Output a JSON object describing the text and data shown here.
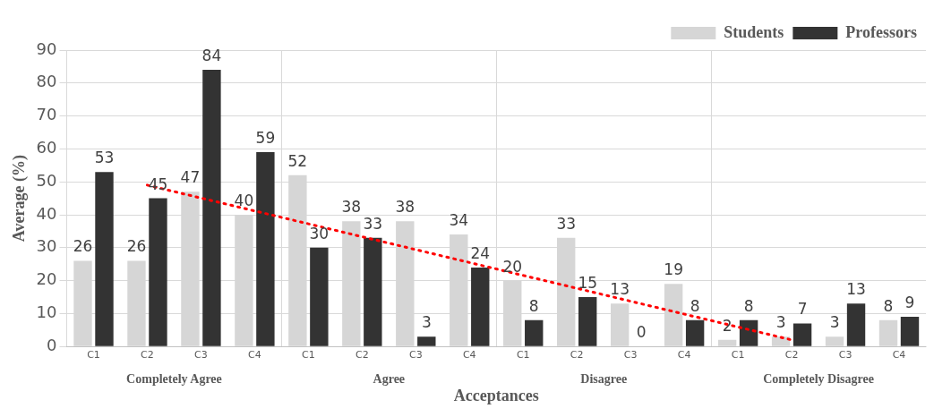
{
  "chart_data": {
    "type": "bar",
    "xlabel": "Acceptances",
    "ylabel": "Average (%)",
    "categories": [
      "C1",
      "C2",
      "C3",
      "C4",
      "C1",
      "C2",
      "C3",
      "C4",
      "C1",
      "C2",
      "C3",
      "C4",
      "C1",
      "C2",
      "C3",
      "C4"
    ],
    "series": [
      {
        "name": "Students",
        "color": "#d6d6d6",
        "values": [
          26,
          26,
          47,
          40,
          52,
          38,
          38,
          34,
          20,
          33,
          13,
          19,
          2,
          3,
          3,
          8
        ],
        "value_labels": [
          "26",
          "26",
          "47",
          "40",
          "52",
          "38",
          "38",
          "34",
          "20",
          "33",
          "13",
          "19",
          "2",
          "3",
          "3",
          "8"
        ]
      },
      {
        "name": "Professors",
        "color": "#333333",
        "values": [
          53,
          45,
          84,
          59,
          30,
          33,
          3,
          24,
          8,
          15,
          0,
          8,
          8,
          7,
          13,
          9
        ],
        "value_labels": [
          "53",
          "45",
          "84",
          "59",
          "30",
          "33",
          "3",
          "24",
          "8",
          "15",
          "0",
          "8",
          "8",
          "7",
          "13",
          "9"
        ]
      },
      {
        "type": "line",
        "color": "#ff0000",
        "line_style": "dotted",
        "values": [
          null,
          49,
          null,
          null,
          null,
          null,
          null,
          null,
          null,
          null,
          null,
          null,
          null,
          2,
          null,
          null
        ]
      }
    ],
    "annotations": [
      "Completely Agree",
      "Agree",
      "Disagree",
      "Completely Disagree"
    ],
    "ylim": [
      0,
      90
    ],
    "yticks": [
      0,
      10,
      20,
      30,
      40,
      50,
      60,
      70,
      80,
      90
    ],
    "grid": true,
    "legend": "top right"
  }
}
